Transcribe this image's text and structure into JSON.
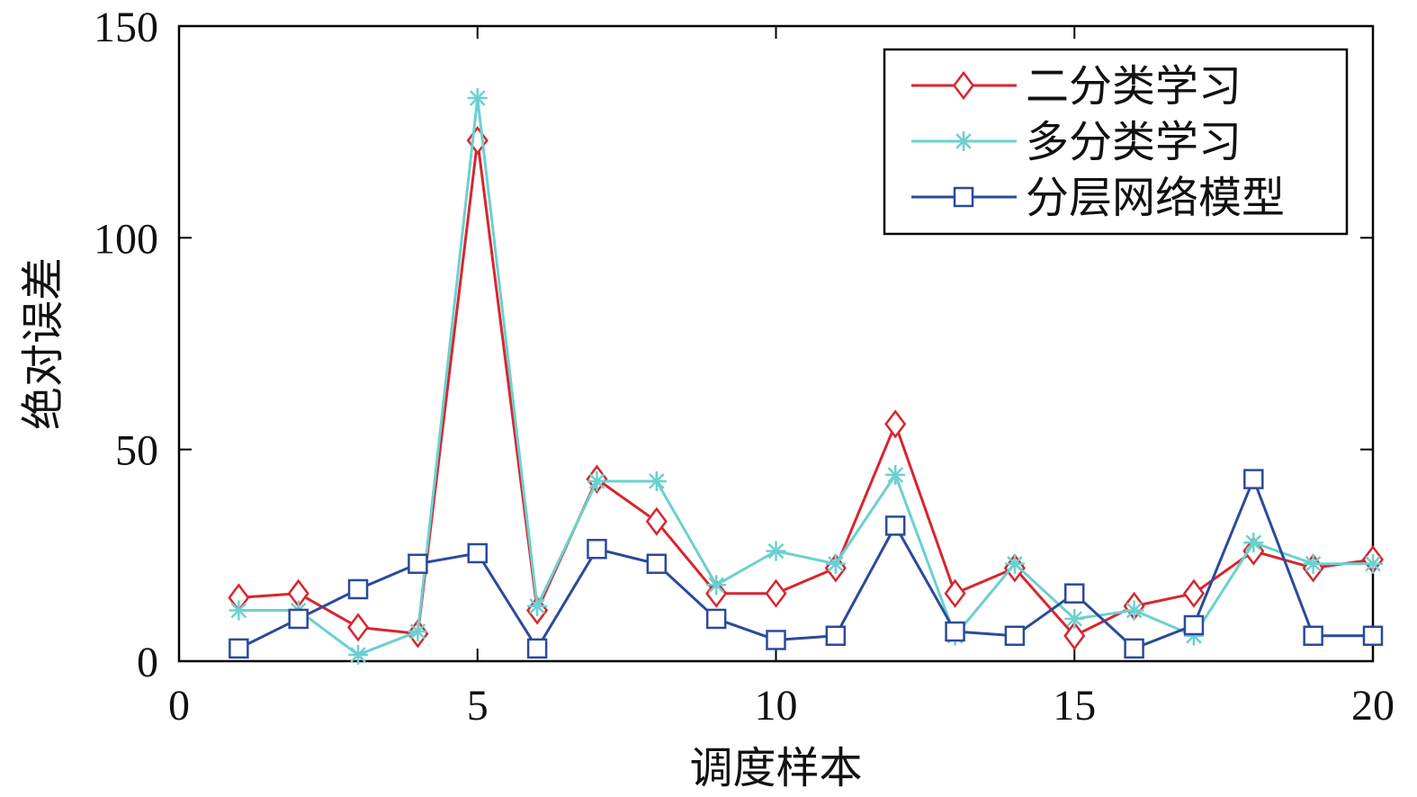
{
  "chart_data": {
    "type": "line",
    "title": "",
    "xlabel": "调度样本",
    "ylabel": "绝对误差",
    "xlim": [
      0,
      20
    ],
    "ylim": [
      0,
      150
    ],
    "xticks": [
      0,
      5,
      10,
      15,
      20
    ],
    "yticks": [
      0,
      50,
      100,
      150
    ],
    "grid": false,
    "legend": "top-right",
    "x": [
      1,
      2,
      3,
      4,
      5,
      6,
      7,
      8,
      9,
      10,
      11,
      12,
      13,
      14,
      15,
      16,
      17,
      18,
      19,
      20
    ],
    "series": [
      {
        "name": "二分类学习",
        "color": "#d7262e",
        "marker": "diamond",
        "values": [
          15,
          16,
          8,
          6.5,
          123,
          12,
          43,
          33,
          16,
          16,
          22,
          56,
          16,
          22,
          6,
          13,
          16,
          26,
          22,
          24
        ]
      },
      {
        "name": "多分类学习",
        "color": "#6cd0d0",
        "marker": "asterisk",
        "values": [
          12,
          12,
          1.5,
          7,
          133,
          13,
          42.5,
          42.5,
          18,
          26,
          23,
          44,
          6,
          23,
          10,
          12,
          6,
          28,
          23,
          23
        ]
      },
      {
        "name": "分层网络模型",
        "color": "#2b4a9b",
        "marker": "square",
        "values": [
          3,
          10,
          17,
          23,
          25.5,
          3,
          26.5,
          23,
          10,
          5,
          6,
          32,
          7,
          6,
          16,
          3,
          8.5,
          43,
          6,
          6
        ]
      }
    ]
  }
}
